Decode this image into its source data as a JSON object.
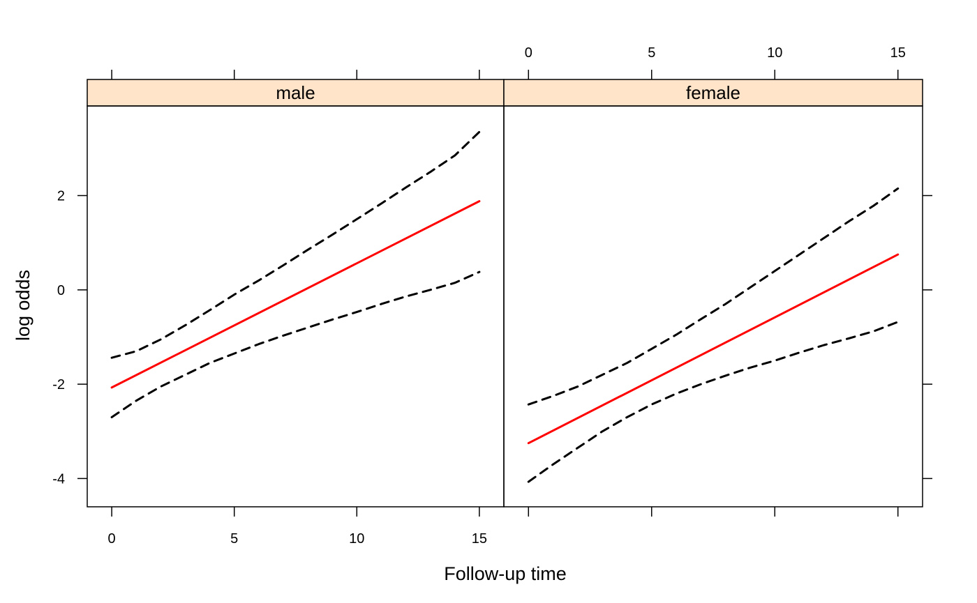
{
  "chart_data": {
    "type": "line",
    "xlabel": "Follow-up time",
    "ylabel": "log odds",
    "xlim": [
      -1,
      16
    ],
    "ylim": [
      -4.6,
      3.9
    ],
    "x_ticks": [
      0,
      5,
      10,
      15
    ],
    "y_ticks": [
      -4,
      -2,
      0,
      2
    ],
    "strip_color": "#ffe4c9",
    "fit_color": "#ff0000",
    "ci_color": "#000000",
    "panels": [
      {
        "strip": "male",
        "series": [
          {
            "role": "fit",
            "style": "solid",
            "x": [
              0,
              15
            ],
            "y": [
              -2.07,
              1.88
            ]
          },
          {
            "role": "upper",
            "style": "dashed",
            "x": [
              0,
              1,
              2,
              3,
              4,
              5,
              6,
              7,
              8,
              9,
              10,
              11,
              12,
              13,
              14,
              15
            ],
            "y": [
              -1.44,
              -1.3,
              -1.05,
              -0.75,
              -0.43,
              -0.1,
              0.2,
              0.52,
              0.85,
              1.17,
              1.5,
              1.83,
              2.17,
              2.5,
              2.85,
              3.35
            ]
          },
          {
            "role": "lower",
            "style": "dashed",
            "x": [
              0,
              1,
              2,
              3,
              4,
              5,
              6,
              7,
              8,
              9,
              10,
              11,
              12,
              13,
              14,
              15
            ],
            "y": [
              -2.7,
              -2.35,
              -2.05,
              -1.8,
              -1.55,
              -1.35,
              -1.15,
              -0.97,
              -0.8,
              -0.63,
              -0.47,
              -0.3,
              -0.14,
              0.0,
              0.15,
              0.38
            ]
          }
        ]
      },
      {
        "strip": "female",
        "series": [
          {
            "role": "fit",
            "style": "solid",
            "x": [
              0,
              15
            ],
            "y": [
              -3.25,
              0.75
            ]
          },
          {
            "role": "upper",
            "style": "dashed",
            "x": [
              0,
              1,
              2,
              3,
              4,
              5,
              6,
              7,
              8,
              9,
              10,
              11,
              12,
              13,
              14,
              15
            ],
            "y": [
              -2.43,
              -2.25,
              -2.05,
              -1.8,
              -1.55,
              -1.25,
              -0.95,
              -0.62,
              -0.3,
              0.05,
              0.4,
              0.75,
              1.1,
              1.45,
              1.78,
              2.15
            ]
          },
          {
            "role": "lower",
            "style": "dashed",
            "x": [
              0,
              1,
              2,
              3,
              4,
              5,
              6,
              7,
              8,
              9,
              10,
              11,
              12,
              13,
              14,
              15
            ],
            "y": [
              -4.07,
              -3.7,
              -3.35,
              -3.0,
              -2.7,
              -2.43,
              -2.2,
              -2.0,
              -1.82,
              -1.65,
              -1.5,
              -1.33,
              -1.17,
              -1.03,
              -0.88,
              -0.68
            ]
          }
        ]
      }
    ]
  }
}
